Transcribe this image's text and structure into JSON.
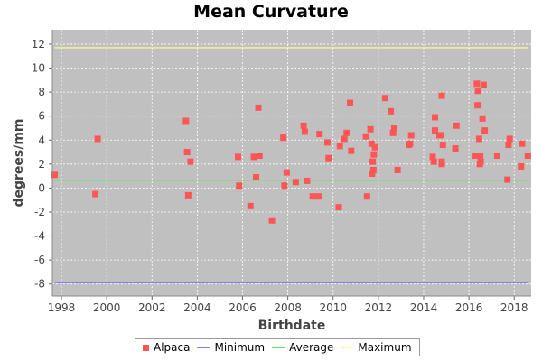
{
  "chart_data": {
    "type": "scatter",
    "title": "Mean Curvature",
    "xlabel": "Birthdate",
    "ylabel": "degrees/mm",
    "xlim": [
      1997.6,
      2018.75
    ],
    "ylim": [
      -9.0,
      13.2
    ],
    "xticks": [
      1998,
      2000,
      2002,
      2004,
      2006,
      2008,
      2010,
      2012,
      2014,
      2016,
      2018
    ],
    "yticks": [
      -8,
      -6,
      -4,
      -2,
      0,
      2,
      4,
      6,
      8,
      10,
      12
    ],
    "grid": true,
    "legend_position": "bottom",
    "series": [
      {
        "name": "Alpaca",
        "kind": "points",
        "color": "#ff5555",
        "points": [
          [
            1997.7,
            1.1
          ],
          [
            1999.5,
            -0.5
          ],
          [
            1999.6,
            4.1
          ],
          [
            2003.5,
            5.6
          ],
          [
            2003.55,
            3.0
          ],
          [
            2003.6,
            -0.6
          ],
          [
            2003.7,
            2.2
          ],
          [
            2005.8,
            2.6
          ],
          [
            2005.85,
            0.2
          ],
          [
            2006.35,
            -1.5
          ],
          [
            2006.5,
            2.6
          ],
          [
            2006.6,
            0.9
          ],
          [
            2006.7,
            6.7
          ],
          [
            2006.75,
            2.7
          ],
          [
            2007.3,
            -2.7
          ],
          [
            2007.8,
            4.2
          ],
          [
            2007.85,
            0.2
          ],
          [
            2007.95,
            1.3
          ],
          [
            2008.35,
            0.5
          ],
          [
            2008.7,
            5.2
          ],
          [
            2008.75,
            4.7
          ],
          [
            2008.85,
            0.6
          ],
          [
            2009.1,
            -0.7
          ],
          [
            2009.35,
            -0.7
          ],
          [
            2009.4,
            4.5
          ],
          [
            2009.75,
            3.8
          ],
          [
            2009.8,
            2.5
          ],
          [
            2010.25,
            -1.6
          ],
          [
            2010.3,
            3.5
          ],
          [
            2010.5,
            4.1
          ],
          [
            2010.6,
            4.6
          ],
          [
            2010.75,
            7.1
          ],
          [
            2010.8,
            3.1
          ],
          [
            2011.45,
            4.3
          ],
          [
            2011.5,
            -0.7
          ],
          [
            2011.65,
            4.9
          ],
          [
            2011.7,
            3.7
          ],
          [
            2011.72,
            1.2
          ],
          [
            2011.75,
            2.2
          ],
          [
            2011.78,
            1.5
          ],
          [
            2011.8,
            2.8
          ],
          [
            2011.85,
            3.4
          ],
          [
            2012.3,
            7.5
          ],
          [
            2012.55,
            6.4
          ],
          [
            2012.65,
            4.6
          ],
          [
            2012.7,
            5.0
          ],
          [
            2012.85,
            1.5
          ],
          [
            2013.35,
            3.6
          ],
          [
            2013.4,
            3.7
          ],
          [
            2013.45,
            4.4
          ],
          [
            2014.4,
            2.6
          ],
          [
            2014.45,
            2.2
          ],
          [
            2014.5,
            4.8
          ],
          [
            2014.5,
            5.9
          ],
          [
            2014.7,
            4.4
          ],
          [
            2014.75,
            4.4
          ],
          [
            2014.8,
            2.0
          ],
          [
            2014.8,
            2.2
          ],
          [
            2014.8,
            7.7
          ],
          [
            2014.85,
            3.6
          ],
          [
            2015.4,
            3.3
          ],
          [
            2015.45,
            5.2
          ],
          [
            2016.3,
            2.7
          ],
          [
            2016.35,
            8.7
          ],
          [
            2016.38,
            6.9
          ],
          [
            2016.4,
            8.1
          ],
          [
            2016.45,
            4.1
          ],
          [
            2016.48,
            2.0
          ],
          [
            2016.5,
            2.7
          ],
          [
            2016.52,
            2.2
          ],
          [
            2016.6,
            5.8
          ],
          [
            2016.65,
            8.6
          ],
          [
            2016.7,
            4.8
          ],
          [
            2017.25,
            2.7
          ],
          [
            2017.7,
            0.7
          ],
          [
            2017.75,
            3.6
          ],
          [
            2017.8,
            4.1
          ],
          [
            2018.3,
            1.8
          ],
          [
            2018.35,
            3.7
          ],
          [
            2018.6,
            2.7
          ]
        ]
      },
      {
        "name": "Minimum",
        "kind": "line",
        "color": "#8080ff",
        "y": -7.9,
        "x_range": [
          1997.7,
          2018.6
        ]
      },
      {
        "name": "Average",
        "kind": "line",
        "color": "#55ee55",
        "y": 0.65,
        "x_range": [
          1997.7,
          2018.6
        ]
      },
      {
        "name": "Maximum",
        "kind": "line",
        "color": "#ffff99",
        "y": 11.7,
        "x_range": [
          1997.7,
          2018.6
        ]
      }
    ]
  }
}
